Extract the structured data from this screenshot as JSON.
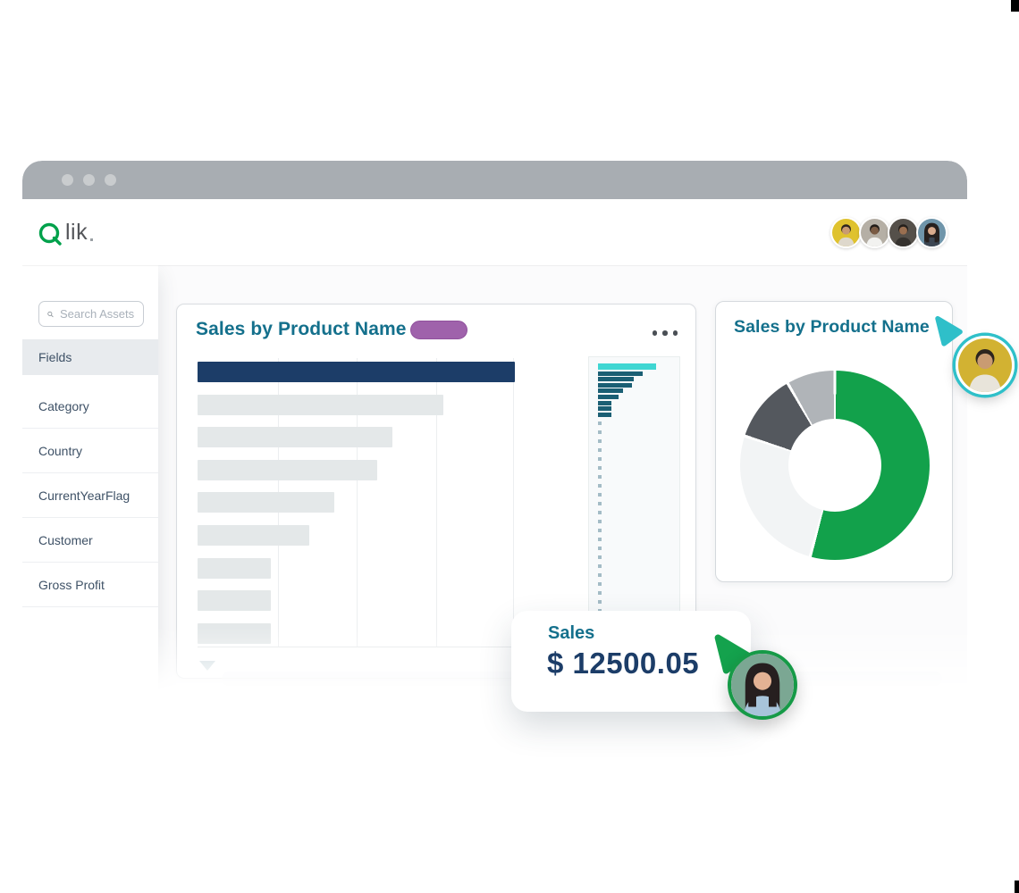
{
  "brand": {
    "logo_q": "Q",
    "logo_rest": "lik",
    "q_color": "#00a14b"
  },
  "window": {
    "titlebar_dot_count": 3,
    "titlebar_color": "#a8adb2"
  },
  "header": {
    "avatars": [
      {
        "name": "user-1",
        "bg": "#dfc22e",
        "skin": "#c99b72",
        "hair": "#2c241e",
        "shirt": "#ded8cc",
        "woman": false
      },
      {
        "name": "user-2",
        "bg": "#b5afa5",
        "skin": "#7a5b44",
        "hair": "#211c18",
        "shirt": "#f2f2f0",
        "woman": false
      },
      {
        "name": "user-3",
        "bg": "#55504a",
        "skin": "#9a6f50",
        "hair": "#241f1b",
        "shirt": "#35322e",
        "woman": false
      },
      {
        "name": "user-4",
        "bg": "#6f95aa",
        "skin": "#d9ab8d",
        "hair": "#27211f",
        "shirt": "#3c4652",
        "woman": true
      }
    ]
  },
  "sidebar": {
    "search_placeholder": "Search Assets",
    "items": [
      {
        "label": "Fields",
        "selected": true
      },
      {
        "label": "Category",
        "selected": false
      },
      {
        "label": "Country",
        "selected": false
      },
      {
        "label": "CurrentYearFlag",
        "selected": false
      },
      {
        "label": "Customer",
        "selected": false
      },
      {
        "label": "Gross Profit",
        "selected": false
      }
    ]
  },
  "main_card": {
    "title": "Sales by Product Name",
    "badge_color": "#9f62ab",
    "chart_data": {
      "type": "bar",
      "orientation": "horizontal",
      "values_rel": [
        1.0,
        0.775,
        0.614,
        0.566,
        0.431,
        0.352,
        0.231,
        0.231,
        0.231
      ],
      "highlight_index": 0,
      "highlight_color": "#1c3d68",
      "bar_color": "#e4e8e9",
      "grid": true,
      "axis_labels_visible": false
    },
    "minimap": {
      "type": "bar",
      "values_rel": [
        1.0,
        0.77,
        0.62,
        0.58,
        0.43,
        0.35,
        0.23,
        0.23,
        0.23
      ],
      "highlight_index": 0,
      "highlight_color": "#3fd6d2",
      "bar_color": "#1b5f74",
      "dot_color": "#a4bcc6",
      "dot_count": 27
    }
  },
  "donut_card": {
    "title": "Sales by Product Name",
    "chart_data": {
      "type": "donut",
      "segments": [
        {
          "label": "segment-1",
          "pct": 54.2,
          "color": "#12a14b"
        },
        {
          "label": "segment-2",
          "pct": 25.8,
          "color": "#f2f4f5"
        },
        {
          "label": "segment-3",
          "pct": 11.7,
          "color": "#54585e"
        },
        {
          "label": "segment-4",
          "pct": 8.3,
          "color": "#b0b4b8"
        }
      ]
    }
  },
  "kpi": {
    "label": "Sales",
    "value": "$ 12500.05"
  },
  "cursors": [
    {
      "name": "collaborator-cursor-teal",
      "color": "#2fbfc9"
    },
    {
      "name": "collaborator-cursor-green",
      "color": "#14a24d"
    }
  ],
  "spot_avatars": [
    {
      "name": "viewer-male",
      "bg": "#d2b232",
      "skin": "#c99b72",
      "hair": "#2c241e",
      "shirt": "#e8e4da",
      "ring": "#2fc0c9",
      "woman": false
    },
    {
      "name": "viewer-female",
      "bg": "#7ba793",
      "skin": "#e3b294",
      "hair": "#261f1f",
      "shirt": "#a8c4da",
      "ring": "#169a47",
      "woman": true
    }
  ]
}
